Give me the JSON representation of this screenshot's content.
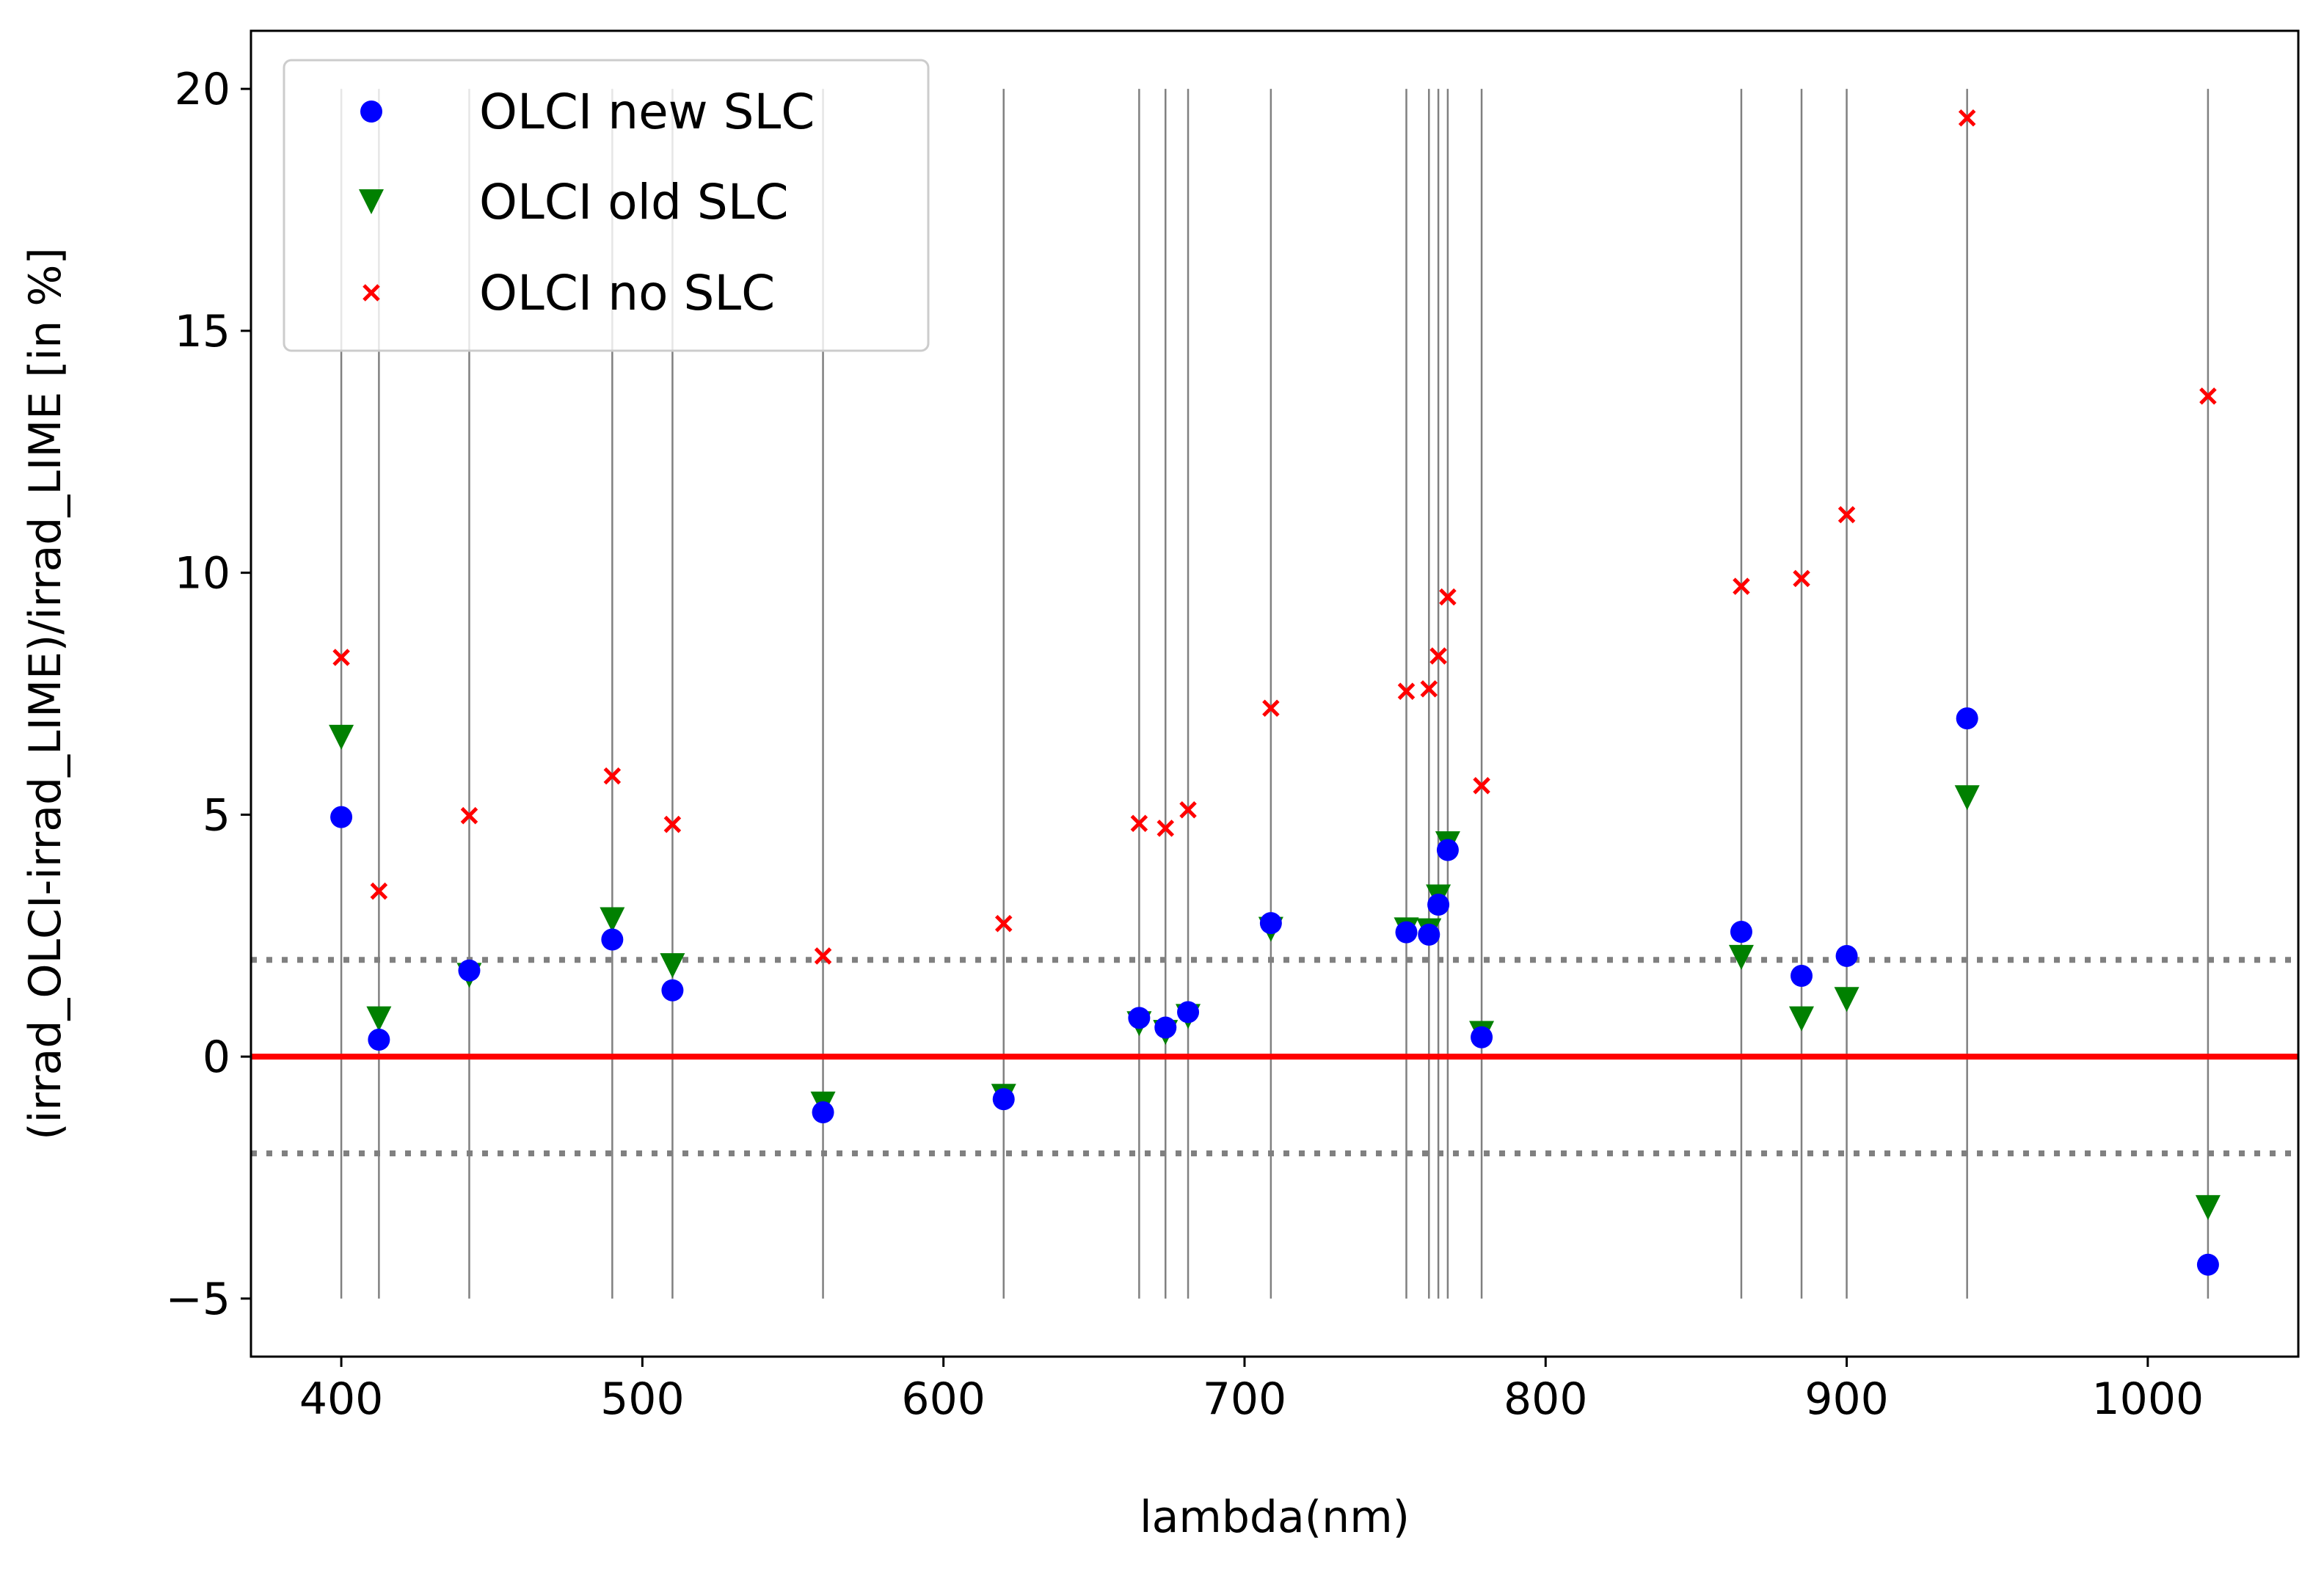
{
  "chart_data": {
    "type": "scatter",
    "title": "",
    "xlabel": "lambda(nm)",
    "ylabel": "(irrad_OLCI-irrad_LIME)/irrad_LIME [in %]",
    "xlim": [
      370,
      1050
    ],
    "ylim": [
      -6.2,
      21.2
    ],
    "xticks": [
      400,
      500,
      600,
      700,
      800,
      900,
      1000
    ],
    "yticks": [
      -5,
      0,
      5,
      10,
      15,
      20
    ],
    "grid": false,
    "legend_position": "top-left",
    "band_lines": {
      "wavelengths": [
        400,
        412.5,
        442.5,
        490,
        510,
        560,
        620,
        665,
        673.75,
        681.25,
        708.75,
        753.75,
        761.25,
        764.375,
        767.5,
        778.75,
        865,
        885,
        900,
        940,
        1020
      ],
      "y_range": [
        -5,
        20
      ],
      "color": "#808080"
    },
    "reference_lines": [
      {
        "y": 0,
        "style": "solid",
        "color": "#ff0000"
      },
      {
        "y": 2,
        "style": "dotted",
        "color": "#808080"
      },
      {
        "y": -2,
        "style": "dotted",
        "color": "#808080"
      }
    ],
    "series": [
      {
        "name": "OLCI new SLC",
        "marker": "circle",
        "color": "#0000ff",
        "x": [
          400,
          412.5,
          442.5,
          490,
          510,
          560,
          620,
          665,
          673.75,
          681.25,
          708.75,
          753.75,
          761.25,
          764.375,
          767.5,
          778.75,
          865,
          885,
          900,
          940,
          1020
        ],
        "y": [
          4.95,
          0.35,
          1.78,
          2.42,
          1.37,
          -1.15,
          -0.88,
          0.8,
          0.6,
          0.92,
          2.76,
          2.57,
          2.52,
          3.14,
          4.27,
          0.4,
          2.58,
          1.67,
          2.08,
          6.99,
          -4.3
        ]
      },
      {
        "name": "OLCI old SLC",
        "marker": "triangle-down",
        "color": "#008000",
        "x": [
          400,
          412.5,
          442.5,
          490,
          510,
          560,
          620,
          665,
          673.75,
          681.25,
          708.75,
          753.75,
          761.25,
          764.375,
          767.5,
          778.75,
          865,
          885,
          900,
          940,
          1020
        ],
        "y": [
          6.6,
          0.78,
          1.68,
          2.83,
          1.88,
          -0.98,
          -0.82,
          0.68,
          0.5,
          0.83,
          2.63,
          2.62,
          2.6,
          3.3,
          4.4,
          0.48,
          2.05,
          0.78,
          1.18,
          5.35,
          -3.12
        ]
      },
      {
        "name": "OLCI no SLC",
        "marker": "x",
        "color": "#ff0000",
        "x": [
          400,
          412.5,
          442.5,
          490,
          510,
          560,
          620,
          665,
          673.75,
          681.25,
          708.75,
          753.75,
          761.25,
          764.375,
          767.5,
          778.75,
          865,
          885,
          900,
          940,
          1020
        ],
        "y": [
          8.25,
          3.42,
          4.98,
          5.8,
          4.8,
          2.08,
          2.75,
          4.82,
          4.72,
          5.1,
          7.2,
          7.55,
          7.6,
          8.28,
          9.5,
          5.6,
          9.72,
          9.88,
          11.2,
          19.4,
          13.65
        ]
      }
    ]
  }
}
